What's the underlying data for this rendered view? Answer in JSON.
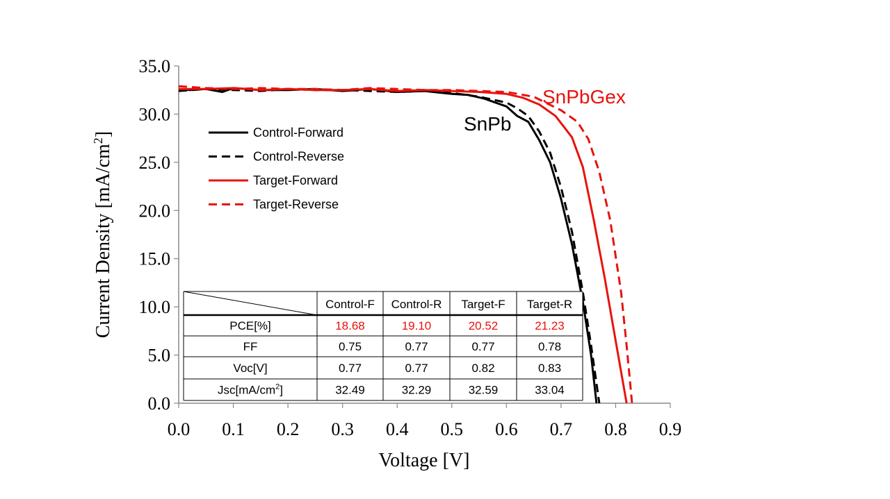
{
  "chart_data": {
    "type": "line",
    "xlabel": "Voltage [V]",
    "ylabel_main": "Current Density [mA/cm",
    "ylabel_sup": "2",
    "ylabel_end": "]",
    "xlim": [
      0.0,
      0.9
    ],
    "ylim": [
      0.0,
      35.0
    ],
    "xticks": [
      "0.0",
      "0.1",
      "0.2",
      "0.3",
      "0.4",
      "0.5",
      "0.6",
      "0.7",
      "0.8",
      "0.9"
    ],
    "yticks": [
      "0.0",
      "5.0",
      "10.0",
      "15.0",
      "20.0",
      "25.0",
      "30.0",
      "35.0"
    ],
    "grid": false,
    "legend_position": "upper-left",
    "annotations": [
      {
        "text": "SnPb",
        "color": "#000000"
      },
      {
        "text": "SnPbGex",
        "color": "#e8120c"
      }
    ],
    "series": [
      {
        "name": "Control-Forward",
        "color": "#000000",
        "dash": false,
        "points": [
          [
            0.0,
            32.6
          ],
          [
            0.02,
            32.5
          ],
          [
            0.05,
            32.6
          ],
          [
            0.08,
            32.3
          ],
          [
            0.1,
            32.7
          ],
          [
            0.15,
            32.5
          ],
          [
            0.2,
            32.5
          ],
          [
            0.25,
            32.6
          ],
          [
            0.3,
            32.4
          ],
          [
            0.35,
            32.6
          ],
          [
            0.4,
            32.3
          ],
          [
            0.45,
            32.4
          ],
          [
            0.5,
            32.1
          ],
          [
            0.53,
            32.0
          ],
          [
            0.56,
            31.6
          ],
          [
            0.58,
            31.2
          ],
          [
            0.6,
            30.8
          ],
          [
            0.62,
            29.8
          ],
          [
            0.64,
            29.2
          ],
          [
            0.66,
            27.3
          ],
          [
            0.68,
            25.0
          ],
          [
            0.7,
            21.2
          ],
          [
            0.72,
            16.5
          ],
          [
            0.74,
            10.5
          ],
          [
            0.755,
            5.0
          ],
          [
            0.765,
            0.0
          ]
        ]
      },
      {
        "name": "Control-Reverse",
        "color": "#000000",
        "dash": true,
        "points": [
          [
            0.0,
            32.4
          ],
          [
            0.05,
            32.6
          ],
          [
            0.1,
            32.5
          ],
          [
            0.15,
            32.4
          ],
          [
            0.2,
            32.6
          ],
          [
            0.25,
            32.5
          ],
          [
            0.3,
            32.5
          ],
          [
            0.35,
            32.4
          ],
          [
            0.4,
            32.3
          ],
          [
            0.45,
            32.4
          ],
          [
            0.5,
            32.2
          ],
          [
            0.55,
            31.8
          ],
          [
            0.6,
            31.2
          ],
          [
            0.62,
            30.6
          ],
          [
            0.64,
            29.8
          ],
          [
            0.66,
            28.2
          ],
          [
            0.68,
            26.0
          ],
          [
            0.7,
            22.4
          ],
          [
            0.72,
            17.8
          ],
          [
            0.74,
            11.5
          ],
          [
            0.755,
            6.0
          ],
          [
            0.77,
            0.0
          ]
        ]
      },
      {
        "name": "Target-Forward",
        "color": "#e8120c",
        "dash": false,
        "points": [
          [
            0.0,
            32.6
          ],
          [
            0.05,
            32.6
          ],
          [
            0.1,
            32.7
          ],
          [
            0.15,
            32.5
          ],
          [
            0.2,
            32.6
          ],
          [
            0.25,
            32.5
          ],
          [
            0.3,
            32.5
          ],
          [
            0.35,
            32.6
          ],
          [
            0.4,
            32.4
          ],
          [
            0.45,
            32.5
          ],
          [
            0.5,
            32.4
          ],
          [
            0.55,
            32.3
          ],
          [
            0.6,
            32.1
          ],
          [
            0.63,
            31.7
          ],
          [
            0.66,
            31.0
          ],
          [
            0.69,
            29.8
          ],
          [
            0.72,
            27.6
          ],
          [
            0.74,
            24.5
          ],
          [
            0.76,
            19.0
          ],
          [
            0.78,
            13.0
          ],
          [
            0.8,
            6.5
          ],
          [
            0.82,
            0.0
          ]
        ]
      },
      {
        "name": "Target-Reverse",
        "color": "#e8120c",
        "dash": true,
        "points": [
          [
            0.0,
            32.9
          ],
          [
            0.05,
            32.7
          ],
          [
            0.1,
            32.6
          ],
          [
            0.15,
            32.7
          ],
          [
            0.2,
            32.6
          ],
          [
            0.25,
            32.6
          ],
          [
            0.3,
            32.5
          ],
          [
            0.35,
            32.7
          ],
          [
            0.4,
            32.6
          ],
          [
            0.45,
            32.5
          ],
          [
            0.5,
            32.5
          ],
          [
            0.55,
            32.4
          ],
          [
            0.6,
            32.3
          ],
          [
            0.65,
            31.8
          ],
          [
            0.7,
            30.4
          ],
          [
            0.73,
            29.2
          ],
          [
            0.75,
            27.4
          ],
          [
            0.77,
            24.0
          ],
          [
            0.79,
            19.0
          ],
          [
            0.81,
            11.5
          ],
          [
            0.82,
            6.0
          ],
          [
            0.83,
            0.0
          ]
        ]
      }
    ],
    "table": {
      "columns": [
        "Control-F",
        "Control-R",
        "Target-F",
        "Target-R"
      ],
      "rows": [
        {
          "label": "PCE[%]",
          "values": [
            "18.68",
            "19.10",
            "20.52",
            "21.23"
          ],
          "color": "#e8120c"
        },
        {
          "label": "FF",
          "values": [
            "0.75",
            "0.77",
            "0.77",
            "0.78"
          ],
          "color": "#000000"
        },
        {
          "label": "Voc[V]",
          "values": [
            "0.77",
            "0.77",
            "0.82",
            "0.83"
          ],
          "color": "#000000"
        },
        {
          "label": "Jsc[mA/cm",
          "label_sup": "2",
          "label_end": "]",
          "values": [
            "32.49",
            "32.29",
            "32.59",
            "33.04"
          ],
          "color": "#000000"
        }
      ]
    }
  }
}
